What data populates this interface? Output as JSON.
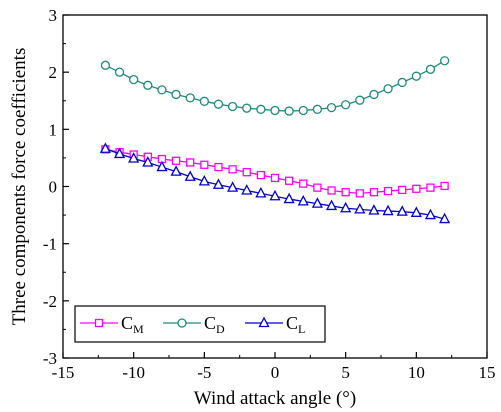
{
  "chart_data": {
    "type": "line",
    "title": "",
    "xlabel": "Wind attack angle (°)",
    "ylabel": "Three components force coefficients",
    "xlim": [
      -15,
      15
    ],
    "ylim": [
      -3,
      3
    ],
    "xticks": [
      "-15",
      "-10",
      "-5",
      "0",
      "5",
      "10",
      "15"
    ],
    "yticks": [
      "-3",
      "-2",
      "-1",
      "0",
      "1",
      "2",
      "3"
    ],
    "grid": false,
    "legend_position": "bottom-left",
    "x": [
      -12,
      -11,
      -10,
      -9,
      -8,
      -7,
      -6,
      -5,
      -4,
      -3,
      -2,
      -1,
      0,
      1,
      2,
      3,
      4,
      5,
      6,
      7,
      8,
      9,
      10,
      11,
      12
    ],
    "series": [
      {
        "name": "C",
        "subscript": "M",
        "color": "#ff00ff",
        "marker": "square",
        "values": [
          0.65,
          0.6,
          0.56,
          0.52,
          0.48,
          0.45,
          0.42,
          0.38,
          0.34,
          0.3,
          0.25,
          0.2,
          0.15,
          0.1,
          0.05,
          -0.02,
          -0.07,
          -0.1,
          -0.12,
          -0.1,
          -0.08,
          -0.06,
          -0.04,
          -0.02,
          0.01
        ]
      },
      {
        "name": "C",
        "subscript": "D",
        "color": "#1f8a7a",
        "marker": "circle",
        "values": [
          2.12,
          2.0,
          1.87,
          1.77,
          1.69,
          1.61,
          1.55,
          1.49,
          1.44,
          1.4,
          1.37,
          1.35,
          1.33,
          1.32,
          1.33,
          1.35,
          1.38,
          1.43,
          1.51,
          1.61,
          1.71,
          1.82,
          1.93,
          2.05,
          2.2
        ]
      },
      {
        "name": "C",
        "subscript": "L",
        "color": "#0000cc",
        "marker": "triangle",
        "values": [
          0.66,
          0.57,
          0.49,
          0.42,
          0.34,
          0.26,
          0.17,
          0.09,
          0.03,
          -0.02,
          -0.07,
          -0.12,
          -0.17,
          -0.22,
          -0.26,
          -0.3,
          -0.34,
          -0.38,
          -0.4,
          -0.42,
          -0.43,
          -0.44,
          -0.46,
          -0.5,
          -0.57
        ]
      }
    ]
  }
}
